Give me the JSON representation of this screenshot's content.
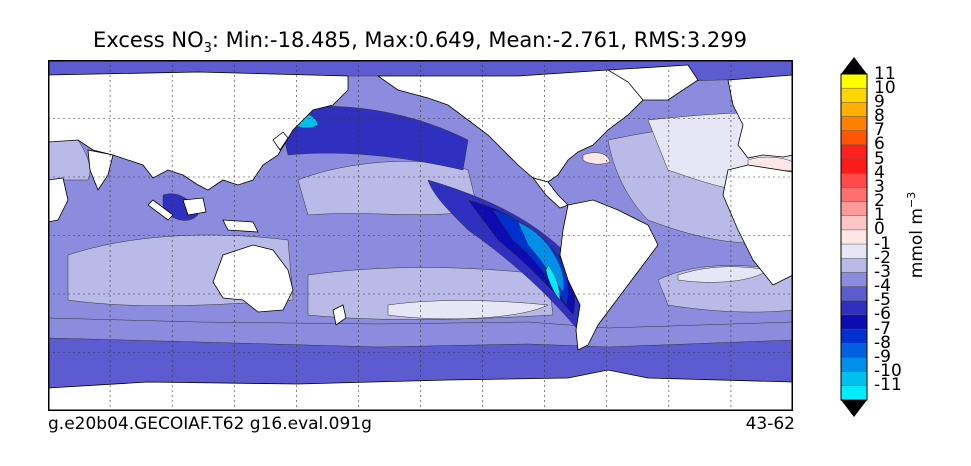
{
  "header": {
    "title_prefix": "Excess NO",
    "title_sub": "3",
    "title_stats": ": Min:-18.485, Max:0.649, Mean:-2.761, RMS:3.299"
  },
  "footer": {
    "left": "g.e20b04.GECOIAF.T62 g16.eval.091g",
    "right": "43-62"
  },
  "colorbar": {
    "unit_main": "mmol m",
    "unit_sup": "−3",
    "tick_labels": [
      "11",
      "10",
      "9",
      "8",
      "7",
      "6",
      "5",
      "4",
      "3",
      "2",
      "1",
      "0",
      "-1",
      "-2",
      "-3",
      "-4",
      "-5",
      "-6",
      "-7",
      "-8",
      "-9",
      "-10",
      "-11"
    ],
    "bins": [
      {
        "from": 10,
        "to": 11,
        "color": "#ffff00"
      },
      {
        "from": 9,
        "to": 10,
        "color": "#ffd700"
      },
      {
        "from": 8,
        "to": 9,
        "color": "#ffb000"
      },
      {
        "from": 7,
        "to": 8,
        "color": "#ff8000"
      },
      {
        "from": 6,
        "to": 7,
        "color": "#ff5500"
      },
      {
        "from": 5,
        "to": 6,
        "color": "#ff2020"
      },
      {
        "from": 4,
        "to": 5,
        "color": "#ff1a1a"
      },
      {
        "from": 3,
        "to": 4,
        "color": "#ff4a4a"
      },
      {
        "from": 2,
        "to": 3,
        "color": "#ff6f6f"
      },
      {
        "from": 1,
        "to": 2,
        "color": "#ff9a9a"
      },
      {
        "from": 0,
        "to": 1,
        "color": "#ffc6c6"
      },
      {
        "from": -1,
        "to": 0,
        "color": "#ffe6e6"
      },
      {
        "from": -2,
        "to": -1,
        "color": "#e6e6f6"
      },
      {
        "from": -3,
        "to": -2,
        "color": "#babae8"
      },
      {
        "from": -4,
        "to": -3,
        "color": "#8c8cde"
      },
      {
        "from": -5,
        "to": -4,
        "color": "#5c5cd0"
      },
      {
        "from": -6,
        "to": -5,
        "color": "#3030c0"
      },
      {
        "from": -7,
        "to": -6,
        "color": "#0c0cb0"
      },
      {
        "from": -8,
        "to": -7,
        "color": "#0030d0"
      },
      {
        "from": -9,
        "to": -8,
        "color": "#0060e0"
      },
      {
        "from": -10,
        "to": -9,
        "color": "#0090ea"
      },
      {
        "from": -11,
        "to": -10,
        "color": "#00c0f0"
      },
      {
        "from": -12,
        "to": -11,
        "color": "#00ecff"
      }
    ],
    "over_color": "#000000",
    "under_color": "#000000"
  },
  "map": {
    "projection": "cylindrical",
    "gridlines": true,
    "land_color": "#ffffff",
    "ocean_base_color": "#8c8cde"
  }
}
